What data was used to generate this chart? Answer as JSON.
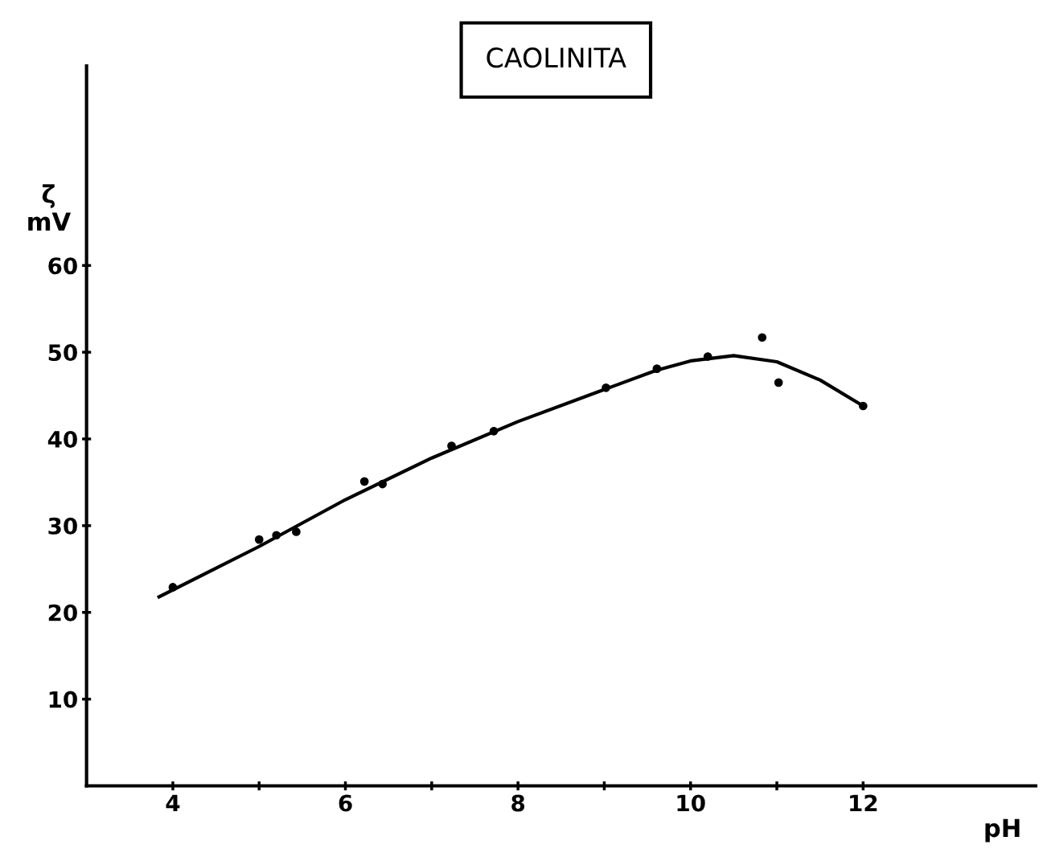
{
  "chart_data": {
    "type": "scatter",
    "title": "CAOLINITA",
    "xlabel": "pH",
    "ylabel": "ζ\nmV",
    "xlim": [
      3.0,
      14.0
    ],
    "ylim": [
      0,
      83
    ],
    "xticks": [
      4,
      {
        "value": 5,
        "label": null
      },
      6,
      {
        "value": 7,
        "label": null
      },
      8,
      {
        "value": 9,
        "label": null
      },
      10,
      {
        "value": 11,
        "label": null
      },
      12
    ],
    "yticks": [
      10,
      20,
      30,
      40,
      50,
      60
    ],
    "grid": false,
    "series": [
      {
        "marker": "circle",
        "color": "#000000",
        "x": [
          4.0,
          5.0,
          5.2,
          5.43,
          6.22,
          6.43,
          7.23,
          7.72,
          9.02,
          9.61,
          10.2,
          10.83,
          11.02,
          12.0
        ],
        "values": [
          22.9,
          28.4,
          28.9,
          29.3,
          35.1,
          34.8,
          39.2,
          40.9,
          45.9,
          48.1,
          49.5,
          51.7,
          46.5,
          43.8
        ]
      },
      {
        "type": "line",
        "marker": "none",
        "color": "#000000",
        "line_style": "solid",
        "x": [
          3.84,
          5,
          6,
          7,
          8,
          9,
          9.6,
          10,
          10.5,
          11,
          11.5,
          12
        ],
        "values": [
          21.8,
          27.6,
          33.0,
          37.8,
          42.0,
          45.7,
          47.9,
          49.0,
          49.6,
          48.9,
          46.8,
          43.8
        ]
      }
    ]
  }
}
